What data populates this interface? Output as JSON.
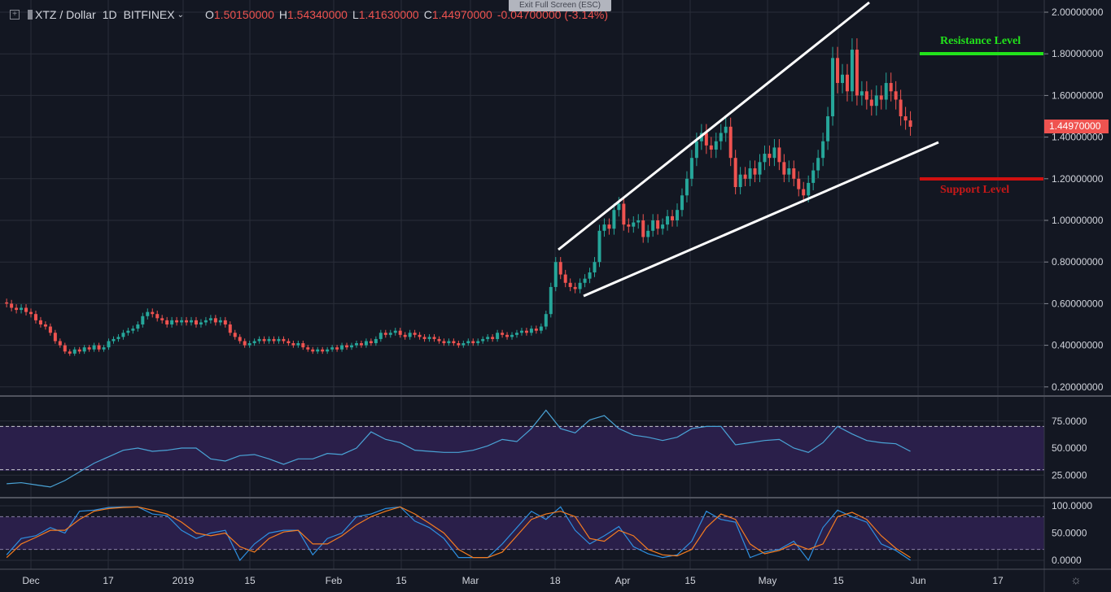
{
  "header": {
    "symbol": "XTZ / Dollar",
    "interval": "1D",
    "exchange": "BITFINEX",
    "open_label": "O",
    "open": "1.50150000",
    "high_label": "H",
    "high": "1.54340000",
    "low_label": "L",
    "low": "1.41630000",
    "close_label": "C",
    "close": "1.44970000",
    "change": "-0.04700000 (-3.14%)"
  },
  "exit_fullscreen": "Exit Full Screen (ESC)",
  "annotations": {
    "resistance_label": "Resistance Level",
    "support_label": "Support Level",
    "resistance_color": "#22e31b",
    "support_color": "#d01010"
  },
  "last_price": "1.44970000",
  "colors": {
    "up": "#26a69a",
    "down": "#ef5350",
    "background": "#131722",
    "rsi": "#4aa3d6",
    "stoch_k": "#2e8fe0",
    "stoch_d": "#f57c20",
    "band": "#2a1f4a"
  },
  "chart_data": [
    {
      "type": "candlestick",
      "first_date": "2018-11-26",
      "closes": [
        0.6,
        0.58,
        0.57,
        0.58,
        0.56,
        0.55,
        0.52,
        0.5,
        0.49,
        0.46,
        0.42,
        0.4,
        0.37,
        0.36,
        0.38,
        0.37,
        0.39,
        0.38,
        0.4,
        0.38,
        0.39,
        0.42,
        0.43,
        0.44,
        0.46,
        0.47,
        0.48,
        0.5,
        0.54,
        0.56,
        0.55,
        0.53,
        0.52,
        0.5,
        0.52,
        0.51,
        0.52,
        0.51,
        0.52,
        0.5,
        0.51,
        0.52,
        0.53,
        0.51,
        0.52,
        0.5,
        0.46,
        0.44,
        0.42,
        0.4,
        0.41,
        0.42,
        0.43,
        0.42,
        0.43,
        0.42,
        0.43,
        0.42,
        0.41,
        0.4,
        0.41,
        0.39,
        0.38,
        0.37,
        0.38,
        0.37,
        0.38,
        0.39,
        0.38,
        0.4,
        0.39,
        0.4,
        0.41,
        0.4,
        0.42,
        0.41,
        0.43,
        0.46,
        0.45,
        0.46,
        0.47,
        0.45,
        0.44,
        0.46,
        0.45,
        0.44,
        0.43,
        0.44,
        0.43,
        0.42,
        0.41,
        0.42,
        0.41,
        0.4,
        0.41,
        0.42,
        0.41,
        0.42,
        0.43,
        0.44,
        0.43,
        0.46,
        0.45,
        0.44,
        0.45,
        0.46,
        0.47,
        0.46,
        0.48,
        0.47,
        0.49,
        0.55,
        0.68,
        0.8,
        0.74,
        0.7,
        0.68,
        0.67,
        0.7,
        0.72,
        0.75,
        0.8,
        0.95,
        0.98,
        0.96,
        1.05,
        1.08,
        0.98,
        0.97,
        0.99,
        1.0,
        0.92,
        0.95,
        1.0,
        0.96,
        0.98,
        1.02,
        1.0,
        1.05,
        1.12,
        1.2,
        1.3,
        1.38,
        1.42,
        1.36,
        1.34,
        1.38,
        1.42,
        1.45,
        1.3,
        1.16,
        1.22,
        1.2,
        1.25,
        1.22,
        1.28,
        1.32,
        1.3,
        1.35,
        1.28,
        1.22,
        1.25,
        1.2,
        1.15,
        1.12,
        1.18,
        1.24,
        1.3,
        1.38,
        1.5,
        1.78,
        1.66,
        1.7,
        1.62,
        1.82,
        1.6,
        1.62,
        1.58,
        1.55,
        1.6,
        1.58,
        1.66,
        1.62,
        1.58,
        1.5,
        1.48,
        1.4497
      ],
      "y_ticks": [
        "2.00000000",
        "1.80000000",
        "1.60000000",
        "1.40000000",
        "1.20000000",
        "1.00000000",
        "0.80000000",
        "0.60000000",
        "0.40000000",
        "0.20000000"
      ],
      "ylim": [
        0.1,
        2.05
      ]
    },
    {
      "type": "line",
      "indicator": "RSI",
      "sample_every_days": 3,
      "values": [
        17,
        18,
        16,
        14,
        20,
        28,
        36,
        42,
        48,
        50,
        47,
        48,
        50,
        50,
        40,
        38,
        43,
        44,
        40,
        35,
        40,
        40,
        45,
        44,
        50,
        65,
        58,
        55,
        48,
        47,
        46,
        46,
        48,
        52,
        58,
        56,
        68,
        85,
        68,
        64,
        76,
        80,
        68,
        62,
        60,
        57,
        60,
        68,
        70,
        70,
        53,
        55,
        57,
        58,
        50,
        46,
        55,
        70,
        63,
        57,
        55,
        54,
        47
      ],
      "bands": [
        30,
        70
      ],
      "y_ticks": [
        "75.0000",
        "50.0000",
        "25.0000"
      ]
    },
    {
      "type": "line",
      "indicator": "Stochastic RSI",
      "sample_every_days": 3,
      "series": [
        {
          "values": [
            10,
            40,
            45,
            60,
            50,
            90,
            92,
            97,
            98,
            98,
            85,
            82,
            55,
            40,
            50,
            55,
            0,
            30,
            50,
            55,
            55,
            10,
            40,
            50,
            80,
            85,
            95,
            98,
            72,
            60,
            40,
            5,
            5,
            5,
            30,
            60,
            90,
            75,
            98,
            55,
            30,
            45,
            62,
            25,
            12,
            5,
            10,
            35,
            90,
            75,
            70,
            5,
            15,
            20,
            35,
            0,
            60,
            92,
            80,
            70,
            30,
            18,
            0
          ]
        },
        {
          "values": [
            5,
            30,
            42,
            55,
            55,
            75,
            90,
            95,
            97,
            98,
            92,
            85,
            70,
            50,
            45,
            50,
            25,
            15,
            40,
            52,
            55,
            30,
            30,
            45,
            65,
            80,
            90,
            98,
            85,
            68,
            50,
            20,
            5,
            5,
            15,
            45,
            75,
            85,
            90,
            80,
            40,
            35,
            55,
            45,
            20,
            10,
            8,
            20,
            60,
            85,
            75,
            30,
            12,
            18,
            30,
            20,
            30,
            80,
            88,
            75,
            45,
            22,
            5
          ]
        }
      ],
      "bands": [
        20,
        80
      ],
      "y_ticks": [
        "100.0000",
        "50.0000",
        "0.0000"
      ]
    }
  ],
  "time_axis": [
    "Dec",
    "17",
    "2019",
    "15",
    "Feb",
    "15",
    "Mar",
    "18",
    "Apr",
    "15",
    "May",
    "15",
    "Jun",
    "17"
  ]
}
